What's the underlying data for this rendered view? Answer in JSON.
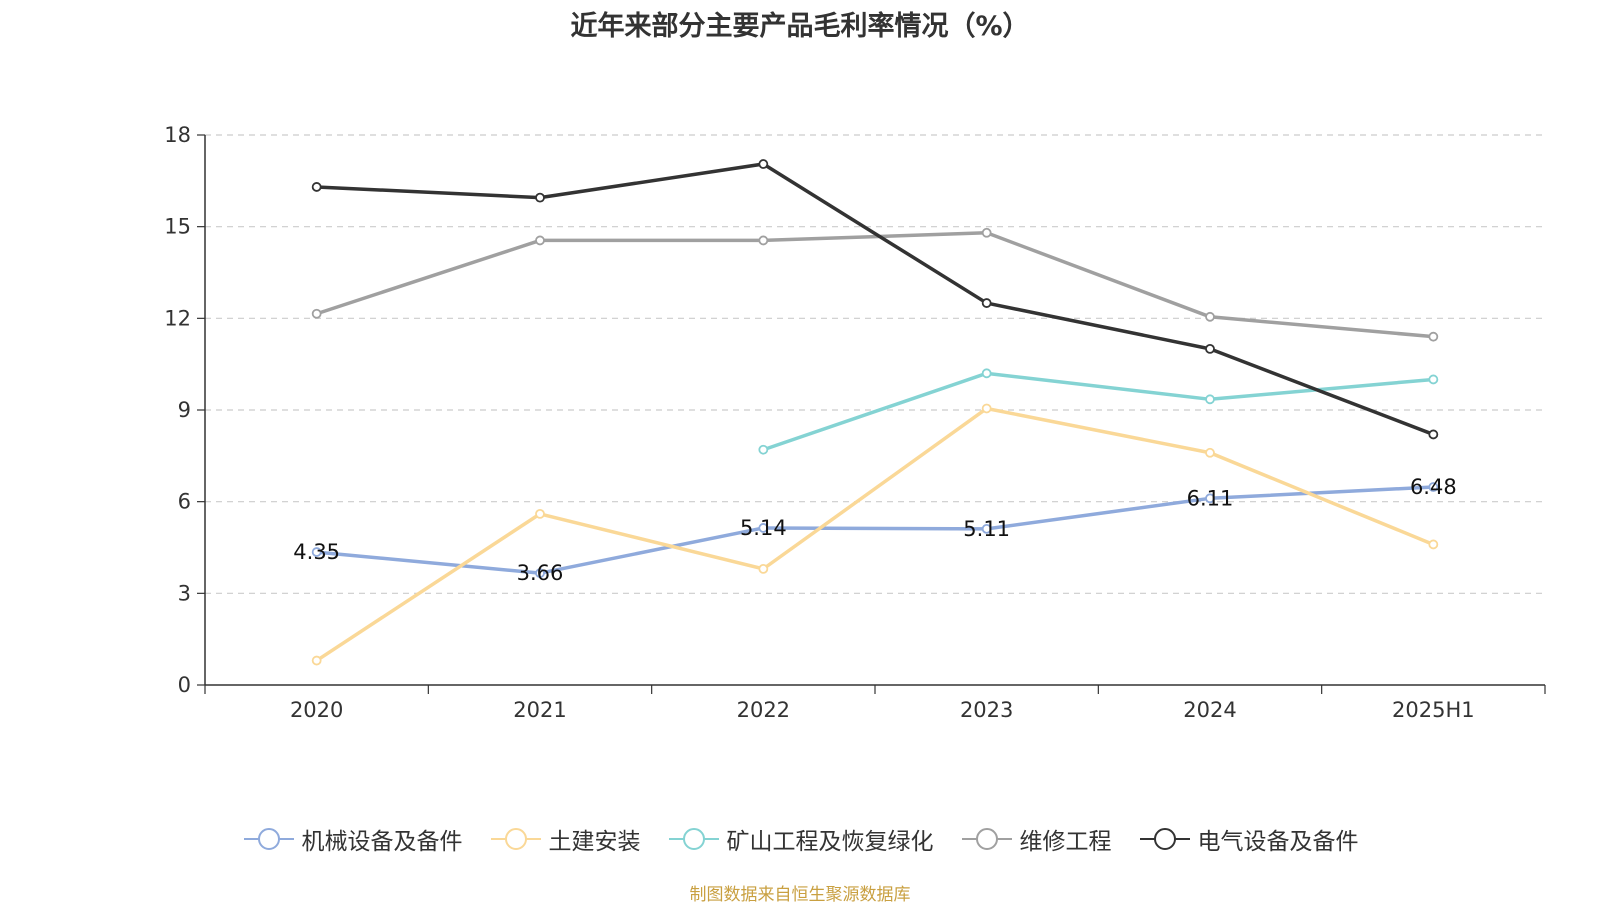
{
  "title": "近年来部分主要产品毛利率情况（%）",
  "source": "制图数据来自恒生聚源数据库",
  "chart_data": {
    "type": "line",
    "title": "近年来部分主要产品毛利率情况（%）",
    "categories": [
      "2020",
      "2021",
      "2022",
      "2023",
      "2024",
      "2025H1"
    ],
    "ylim": [
      0,
      18
    ],
    "yticks": [
      0,
      3,
      6,
      9,
      12,
      15,
      18
    ],
    "grid": true,
    "legend_position": "bottom",
    "series": [
      {
        "name": "机械设备及备件",
        "color": "#8faadc",
        "values": [
          4.35,
          3.66,
          5.14,
          5.11,
          6.11,
          6.48
        ],
        "labels": [
          "4.35",
          "3.66",
          "5.14",
          "5.11",
          "6.11",
          "6.48"
        ]
      },
      {
        "name": "土建安装",
        "color": "#fad897",
        "values": [
          0.8,
          5.6,
          3.8,
          9.05,
          7.6,
          4.6
        ],
        "labels": []
      },
      {
        "name": "矿山工程及恢复绿化",
        "color": "#84d3d3",
        "values": [
          null,
          null,
          7.7,
          10.2,
          9.35,
          10.0
        ],
        "labels": []
      },
      {
        "name": "维修工程",
        "color": "#a0a0a0",
        "values": [
          12.15,
          14.55,
          14.55,
          14.8,
          12.05,
          11.4
        ],
        "labels": []
      },
      {
        "name": "电气设备及备件",
        "color": "#333333",
        "values": [
          16.3,
          15.95,
          17.05,
          12.5,
          11.0,
          8.2
        ],
        "labels": []
      }
    ]
  }
}
